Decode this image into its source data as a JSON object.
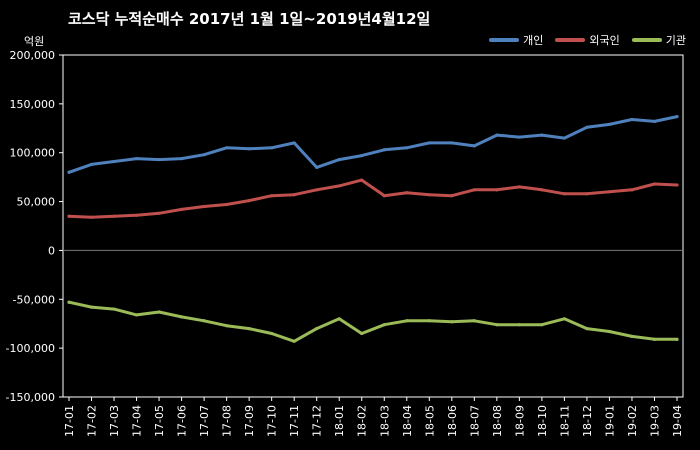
{
  "title": "코스닥  누적순매수 2017년 1월 1일~2019년4월12일",
  "unit": "억원",
  "colors": {
    "background": "#000000",
    "axis": "#ffffff",
    "grid": "#777777"
  },
  "chart_data": {
    "type": "line",
    "title": "코스닥  누적순매수 2017년 1월 1일~2019년4월12일",
    "xlabel": "",
    "ylabel": "억원",
    "ylim": [
      -150000,
      200000
    ],
    "yticks": [
      200000,
      150000,
      100000,
      50000,
      0,
      -50000,
      -100000,
      -150000
    ],
    "ytick_labels": [
      "200,000",
      "150,000",
      "100,000",
      "50,000",
      "0",
      "-50,000",
      "-100,000",
      "-150,000"
    ],
    "grid": "horizontal line at 0",
    "legend": "top-right",
    "x": [
      "17-01",
      "17-02",
      "17-03",
      "17-04",
      "17-05",
      "17-06",
      "17-07",
      "17-08",
      "17-09",
      "17-10",
      "17-11",
      "17-12",
      "18-01",
      "18-02",
      "18-03",
      "18-04",
      "18-05",
      "18-06",
      "18-07",
      "18-08",
      "18-09",
      "18-10",
      "18-11",
      "18-12",
      "19-01",
      "19-02",
      "19-03",
      "19-04"
    ],
    "series": [
      {
        "name": "개인",
        "color": "#4f81bd",
        "values": [
          80000,
          88000,
          91000,
          94000,
          93000,
          94000,
          98000,
          105000,
          104000,
          105000,
          110000,
          85000,
          93000,
          97000,
          103000,
          105000,
          110000,
          110000,
          107000,
          118000,
          116000,
          118000,
          115000,
          126000,
          129000,
          134000,
          132000,
          137000
        ]
      },
      {
        "name": "외국인",
        "color": "#c0504d",
        "values": [
          35000,
          34000,
          35000,
          36000,
          38000,
          42000,
          45000,
          47000,
          51000,
          56000,
          57000,
          62000,
          66000,
          72000,
          56000,
          59000,
          57000,
          56000,
          62000,
          62000,
          65000,
          62000,
          58000,
          58000,
          60000,
          62000,
          68000,
          67000
        ]
      },
      {
        "name": "기관",
        "color": "#9bbb59",
        "values": [
          -53000,
          -58000,
          -60000,
          -66000,
          -63000,
          -68000,
          -72000,
          -77000,
          -80000,
          -85000,
          -93000,
          -80000,
          -70000,
          -85000,
          -76000,
          -72000,
          -72000,
          -73000,
          -72000,
          -76000,
          -76000,
          -76000,
          -70000,
          -80000,
          -83000,
          -88000,
          -91000,
          -91000
        ]
      }
    ]
  }
}
